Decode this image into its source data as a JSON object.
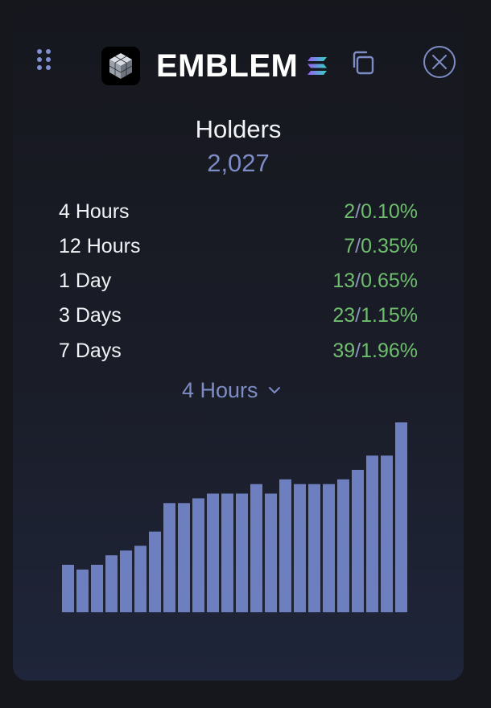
{
  "header": {
    "token_name": "EMBLEM",
    "icons": {
      "drag": "drag-handle-icon",
      "logo": "token-logo-icon",
      "chain": "solana-icon",
      "copy": "copy-icon",
      "close": "close-icon"
    }
  },
  "holders": {
    "title": "Holders",
    "count": "2,027"
  },
  "stats": [
    {
      "label": "4 Hours",
      "count": "2",
      "percent": "0.10%"
    },
    {
      "label": "12 Hours",
      "count": "7",
      "percent": "0.35%"
    },
    {
      "label": "1 Day",
      "count": "13",
      "percent": "0.65%"
    },
    {
      "label": "3 Days",
      "count": "23",
      "percent": "1.15%"
    },
    {
      "label": "7 Days",
      "count": "39",
      "percent": "1.96%"
    }
  ],
  "period_selector": {
    "selected": "4 Hours"
  },
  "colors": {
    "accent": "#7e8cc6",
    "bar": "#6e7fc0",
    "positive": "#6ebe6e",
    "background": "#16171d"
  },
  "chart_data": {
    "type": "bar",
    "values": [
      10,
      9,
      10,
      12,
      13,
      14,
      17,
      23,
      23,
      24,
      25,
      25,
      25,
      27,
      25,
      28,
      27,
      27,
      27,
      28,
      30,
      33,
      33,
      40
    ],
    "ylim": [
      0,
      40
    ]
  }
}
